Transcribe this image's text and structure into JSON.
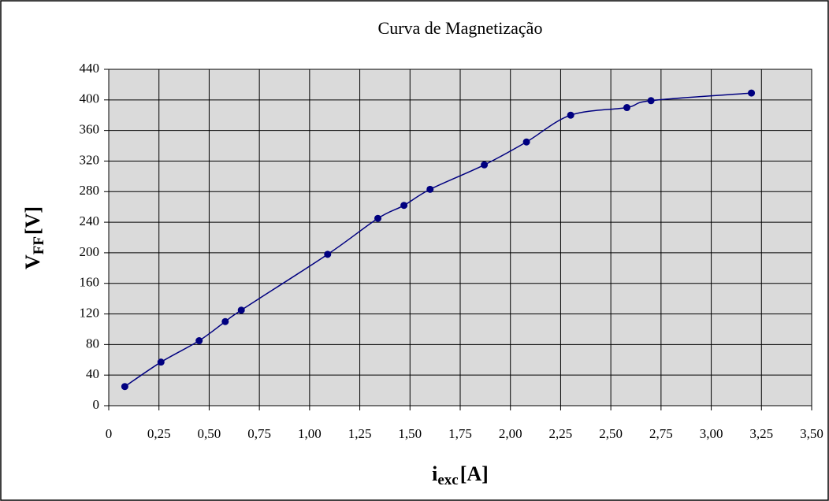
{
  "chart_data": {
    "type": "scatter-line",
    "title": "Curva de Magnetização",
    "x_label": {
      "main": "i",
      "sub": "exc",
      "unit": "[A]"
    },
    "y_label": {
      "main": "V",
      "sub": "FF",
      "unit": "[V]"
    },
    "x": [
      0.08,
      0.26,
      0.45,
      0.58,
      0.66,
      1.09,
      1.34,
      1.47,
      1.6,
      1.87,
      2.08,
      2.3,
      2.58,
      2.7,
      3.2
    ],
    "values": [
      25,
      57,
      85,
      110,
      125,
      198,
      245,
      262,
      283,
      315,
      345,
      380,
      390,
      399,
      409
    ],
    "color": "#000080",
    "xlim": [
      0,
      3.5
    ],
    "xticks": [
      0,
      {
        "value": 0.25,
        "label": "0,25"
      },
      {
        "value": 0.5,
        "label": "0,50"
      },
      {
        "value": 0.75,
        "label": "0,75"
      },
      {
        "value": 1,
        "label": "1,00"
      },
      {
        "value": 1.25,
        "label": "1,25"
      },
      {
        "value": 1.5,
        "label": "1,50"
      },
      {
        "value": 1.75,
        "label": "1,75"
      },
      {
        "value": 2,
        "label": "2,00"
      },
      {
        "value": 2.25,
        "label": "2,25"
      },
      {
        "value": 2.5,
        "label": "2,50"
      },
      {
        "value": 2.75,
        "label": "2,75"
      },
      {
        "value": 3,
        "label": "3,00"
      },
      {
        "value": 3.25,
        "label": "3,25"
      },
      {
        "value": 3.5,
        "label": "3,50"
      }
    ],
    "ylim": [
      0,
      440
    ],
    "yticks": [
      0,
      40,
      80,
      120,
      160,
      200,
      240,
      280,
      320,
      360,
      400,
      440
    ],
    "grid": true
  }
}
